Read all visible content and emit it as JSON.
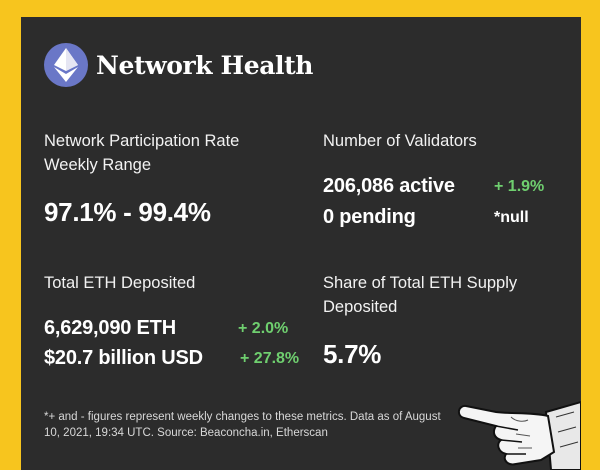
{
  "header": {
    "title": "Network Health",
    "logo_icon": "ethereum-icon"
  },
  "participation": {
    "label_line1": "Network Participation Rate",
    "label_line2": "Weekly Range",
    "value": "97.1% - 99.4%"
  },
  "validators": {
    "label": "Number of Validators",
    "active": "206,086 active",
    "active_change": "+ 1.9%",
    "pending": "0 pending",
    "pending_change": "*null"
  },
  "deposited": {
    "label": "Total ETH Deposited",
    "eth": "6,629,090 ETH",
    "eth_change": "+ 2.0%",
    "usd": "$20.7 billion USD",
    "usd_change": "+ 27.8%"
  },
  "share": {
    "label_line1": "Share of Total ETH Supply",
    "label_line2": "Deposited",
    "value": "5.7%"
  },
  "footnote": "*+ and - figures represent weekly changes to these metrics. Data as of August 10, 2021, 19:34 UTC. Source: Beaconcha.in, Etherscan",
  "colors": {
    "background": "#f7c51e",
    "card": "#2c2c2c",
    "positive": "#6fcf6f",
    "logo": "#6a77c7"
  }
}
